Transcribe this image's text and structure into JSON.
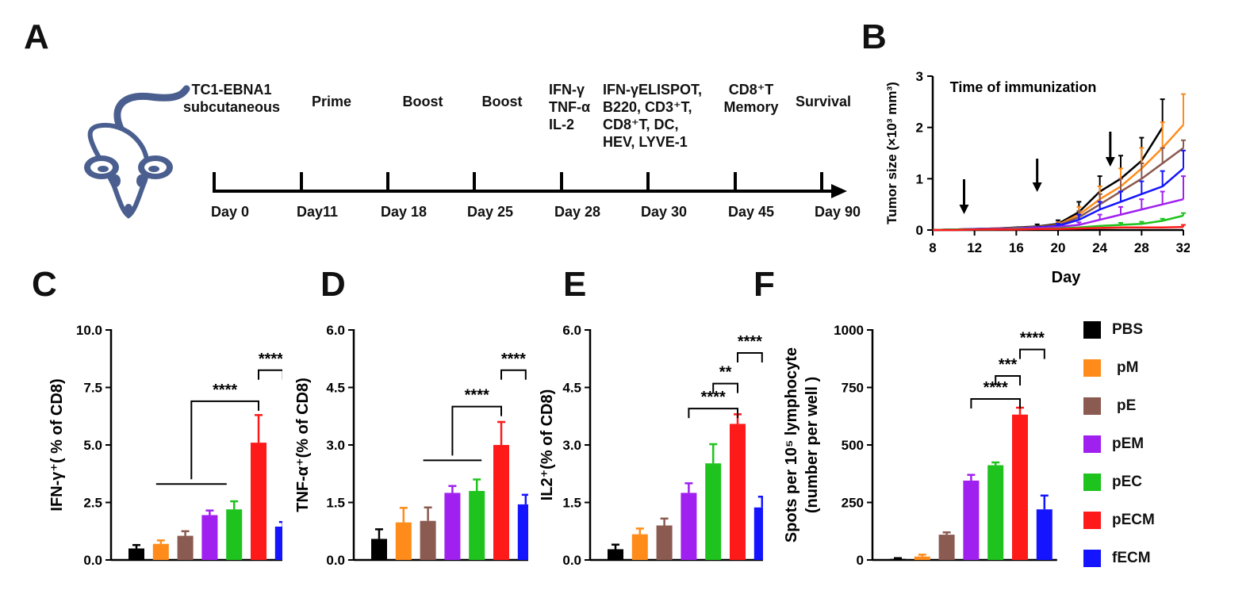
{
  "panels": {
    "A": "A",
    "B": "B",
    "C": "C",
    "D": "D",
    "E": "E",
    "F": "F"
  },
  "timeline": {
    "events": [
      {
        "lines": [
          "TC1-EBNA1",
          "subcutaneous"
        ],
        "day": "Day 0"
      },
      {
        "lines": [
          "Prime"
        ],
        "day": "Day11"
      },
      {
        "lines": [
          "Boost"
        ],
        "day": "Day 18"
      },
      {
        "lines": [
          "Boost"
        ],
        "day": "Day 25"
      },
      {
        "lines": [
          "IFN-γ",
          "TNF-α",
          "IL-2"
        ],
        "day": "Day 28"
      },
      {
        "lines": [
          "IFN-γELISPOT,",
          "B220, CD3⁺T,",
          "CD8⁺T, DC,",
          "HEV, LYVE-1"
        ],
        "day": "Day 30"
      },
      {
        "lines": [
          "CD8⁺T",
          "Memory"
        ],
        "day": "Day 45"
      },
      {
        "lines": [
          "Survival"
        ],
        "day": "Day 90"
      }
    ]
  },
  "colors": {
    "PBS": "#000000",
    "pM": "#ff8c1a",
    "pE": "#8b5a50",
    "pEM": "#a020f0",
    "pEC": "#1ec31e",
    "pECM": "#ff1a1a",
    "fECM": "#1414ff",
    "mouse": "#4a5f8f"
  },
  "legend": [
    "PBS",
    "pM",
    "pE",
    "pEM",
    "pEC",
    "pECM",
    "fECM"
  ],
  "chart_data": [
    {
      "panel": "B",
      "type": "line",
      "title": "Time of immunization",
      "xlabel": "Day",
      "ylabel": "Tumor size (×10³ mm³)",
      "xlim": [
        8,
        32
      ],
      "ylim": [
        0,
        3
      ],
      "xticks": [
        8,
        12,
        16,
        20,
        24,
        28,
        32
      ],
      "yticks": [
        0,
        1,
        2,
        3
      ],
      "immunization_days": [
        11,
        18,
        25
      ],
      "x": [
        8,
        10,
        12,
        14,
        16,
        18,
        20,
        22,
        24,
        26,
        28,
        30,
        32
      ],
      "series": [
        {
          "name": "PBS",
          "values": [
            0,
            0.01,
            0.02,
            0.03,
            0.05,
            0.07,
            0.12,
            0.35,
            0.75,
            1.0,
            1.35,
            2.0,
            null
          ],
          "err": [
            0,
            0.01,
            0.01,
            0.02,
            0.03,
            0.04,
            0.07,
            0.2,
            0.3,
            0.45,
            0.45,
            0.55,
            null
          ]
        },
        {
          "name": "pM",
          "values": [
            0,
            0.01,
            0.02,
            0.03,
            0.04,
            0.06,
            0.1,
            0.3,
            0.6,
            0.85,
            1.2,
            1.6,
            2.05
          ],
          "err": [
            0,
            0.01,
            0.01,
            0.02,
            0.02,
            0.03,
            0.05,
            0.15,
            0.25,
            0.35,
            0.4,
            0.5,
            0.6
          ]
        },
        {
          "name": "pE",
          "values": [
            0,
            0.01,
            0.02,
            0.03,
            0.04,
            0.06,
            0.09,
            0.25,
            0.5,
            0.75,
            1.0,
            1.3,
            1.6
          ],
          "err": [
            0,
            0.01,
            0.01,
            0.01,
            0.02,
            0.03,
            0.04,
            0.12,
            0.2,
            0.25,
            0.3,
            0.3,
            0.15
          ]
        },
        {
          "name": "fECM",
          "values": [
            0,
            0.01,
            0.02,
            0.02,
            0.03,
            0.05,
            0.08,
            0.2,
            0.4,
            0.55,
            0.7,
            0.85,
            1.2
          ],
          "err": [
            0,
            0.01,
            0.01,
            0.01,
            0.02,
            0.02,
            0.04,
            0.1,
            0.15,
            0.2,
            0.25,
            0.3,
            0.35
          ]
        },
        {
          "name": "pEM",
          "values": [
            0,
            0.01,
            0.01,
            0.02,
            0.03,
            0.04,
            0.06,
            0.1,
            0.2,
            0.3,
            0.4,
            0.5,
            0.6
          ],
          "err": [
            0,
            0.01,
            0.01,
            0.01,
            0.01,
            0.02,
            0.03,
            0.05,
            0.1,
            0.15,
            0.2,
            0.25,
            0.45
          ]
        },
        {
          "name": "pEC",
          "values": [
            0,
            0.01,
            0.01,
            0.01,
            0.02,
            0.02,
            0.03,
            0.05,
            0.08,
            0.1,
            0.12,
            0.18,
            0.28
          ],
          "err": [
            0,
            0,
            0,
            0.01,
            0.01,
            0.01,
            0.01,
            0.02,
            0.03,
            0.04,
            0.04,
            0.04,
            0.05
          ]
        },
        {
          "name": "pECM",
          "values": [
            0,
            0,
            0.01,
            0.01,
            0.01,
            0.02,
            0.02,
            0.03,
            0.04,
            0.05,
            0.05,
            0.05,
            0.06
          ],
          "err": [
            0,
            0,
            0,
            0,
            0,
            0.01,
            0.01,
            0.01,
            0.01,
            0.02,
            0.02,
            0.02,
            0.04
          ]
        }
      ]
    },
    {
      "panel": "C",
      "type": "bar",
      "ylabel": "IFN-γ⁺( % of CD8)",
      "ylim": [
        0,
        10
      ],
      "yticks": [
        0,
        2.5,
        5,
        7.5,
        10
      ],
      "yticklabels": [
        "0.0",
        "2.5",
        "5.0",
        "7.5",
        "10.0"
      ],
      "categories": [
        "PBS",
        "pM",
        "pE",
        "pEM",
        "pEC",
        "pECM",
        "fECM"
      ],
      "values": [
        0.5,
        0.7,
        1.05,
        1.95,
        2.2,
        5.1,
        1.45
      ],
      "errors": [
        0.15,
        0.15,
        0.2,
        0.2,
        0.35,
        1.2,
        0.2
      ],
      "annotations": [
        {
          "text": "****",
          "type": "group",
          "group_from": 1,
          "group_to": 3.5,
          "to": 5,
          "y": 6.9,
          "group_y": 3.3
        },
        {
          "text": "****",
          "type": "pair",
          "from": 5,
          "to": 6,
          "y": 8.25
        }
      ]
    },
    {
      "panel": "D",
      "type": "bar",
      "ylabel": "TNF-α⁺(% of CD8)",
      "ylim": [
        0,
        6
      ],
      "yticks": [
        0,
        1.5,
        3,
        4.5,
        6
      ],
      "yticklabels": [
        "0.0",
        "1.5",
        "3.0",
        "4.5",
        "6.0"
      ],
      "categories": [
        "PBS",
        "pM",
        "pE",
        "pEM",
        "pEC",
        "pECM",
        "fECM"
      ],
      "values": [
        0.55,
        0.98,
        1.02,
        1.75,
        1.8,
        3.0,
        1.45
      ],
      "errors": [
        0.25,
        0.38,
        0.35,
        0.18,
        0.3,
        0.6,
        0.25
      ],
      "annotations": [
        {
          "text": "****",
          "type": "group",
          "group_from": 2,
          "group_to": 4,
          "to": 5,
          "y": 4.0,
          "group_y": 2.6
        },
        {
          "text": "****",
          "type": "pair",
          "from": 5,
          "to": 6,
          "y": 4.95
        }
      ]
    },
    {
      "panel": "E",
      "type": "bar",
      "ylabel": "IL2⁺(% of CD8)",
      "ylim": [
        0,
        6
      ],
      "yticks": [
        0,
        1.5,
        3,
        4.5,
        6
      ],
      "yticklabels": [
        "0.0",
        "1.5",
        "3.0",
        "4.5",
        "6.0"
      ],
      "categories": [
        "PBS",
        "pM",
        "pE",
        "pEM",
        "pEC",
        "pECM",
        "fECM"
      ],
      "values": [
        0.28,
        0.67,
        0.9,
        1.75,
        2.52,
        3.55,
        1.37
      ],
      "errors": [
        0.12,
        0.15,
        0.18,
        0.25,
        0.5,
        0.25,
        0.28
      ],
      "annotations": [
        {
          "text": "****",
          "type": "pair",
          "from": 3,
          "to": 5,
          "y": 3.95
        },
        {
          "text": "**",
          "type": "pair",
          "from": 4,
          "to": 5,
          "y": 4.6
        },
        {
          "text": "****",
          "type": "pair",
          "from": 5,
          "to": 6,
          "y": 5.4
        }
      ]
    },
    {
      "panel": "F",
      "type": "bar",
      "ylabel": "Spots per 10⁵ lymphocyte\n(number per well )",
      "ylim": [
        0,
        1000
      ],
      "yticks": [
        0,
        250,
        500,
        750,
        1000
      ],
      "yticklabels": [
        "0",
        "250",
        "500",
        "750",
        "1000"
      ],
      "categories": [
        "PBS",
        "pM",
        "pE",
        "pEM",
        "pEC",
        "pECM",
        "fECM"
      ],
      "values": [
        5,
        15,
        110,
        345,
        412,
        632,
        220
      ],
      "errors": [
        3,
        8,
        10,
        25,
        12,
        30,
        60
      ],
      "annotations": [
        {
          "text": "****",
          "type": "pair",
          "from": 3,
          "to": 5,
          "y": 700
        },
        {
          "text": "***",
          "type": "pair",
          "from": 4,
          "to": 5,
          "y": 800
        },
        {
          "text": "****",
          "type": "pair",
          "from": 5,
          "to": 6,
          "y": 915
        }
      ]
    }
  ]
}
